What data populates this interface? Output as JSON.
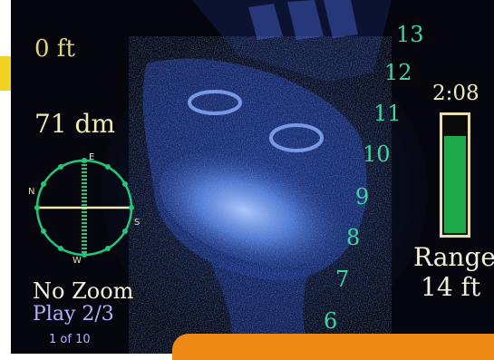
{
  "overlay": {
    "depth_ft": "0 ft",
    "depth_dm": "71 dm",
    "zoom_status": "No Zoom",
    "playback": "Play 2/3",
    "frame_counter": "1 of 10",
    "timer": "2:08",
    "range_label": "Range",
    "range_value": "14 ft"
  },
  "compass": {
    "icon": "compass-icon",
    "marks": [
      "E",
      "N",
      "S",
      "W"
    ]
  },
  "range_scale": {
    "ticks": [
      "13",
      "12",
      "11",
      "10",
      "9",
      "8",
      "7",
      "6"
    ]
  },
  "battery": {
    "level_fraction": 0.84
  },
  "colors": {
    "screen_background": "#05060d",
    "sonar_blue": "#4f8cf0",
    "scale_green": "#3fd6a0",
    "compass_green": "#22c77a",
    "accent_yellow": "#f1d21e",
    "accent_orange": "#f08a16",
    "battery_green": "#1faa4a"
  }
}
